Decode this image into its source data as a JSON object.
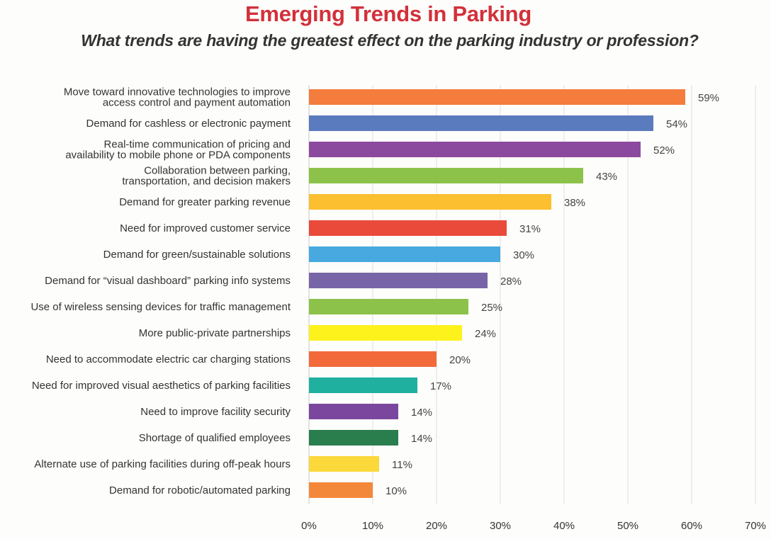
{
  "title": "Emerging Trends in Parking",
  "subtitle": "What trends are having the greatest effect on the parking industry or profession?",
  "chart_data": {
    "type": "bar",
    "orientation": "horizontal",
    "categories": [
      [
        "Move toward innovative technologies to improve",
        "access control and payment automation"
      ],
      [
        "Demand for cashless or electronic payment"
      ],
      [
        "Real-time communication of pricing and",
        "availability to mobile phone or PDA components"
      ],
      [
        "Collaboration between parking,",
        "transportation, and decision makers"
      ],
      [
        "Demand for greater parking revenue"
      ],
      [
        "Need for improved customer service"
      ],
      [
        "Demand for green/sustainable solutions"
      ],
      [
        "Demand for “visual dashboard” parking info systems"
      ],
      [
        "Use of wireless sensing devices for traffic management"
      ],
      [
        "More public-private partnerships"
      ],
      [
        "Need to accommodate electric car charging stations"
      ],
      [
        "Need for improved visual aesthetics of parking facilities"
      ],
      [
        "Need to improve facility security"
      ],
      [
        "Shortage of qualified employees"
      ],
      [
        "Alternate use of parking facilities during off-peak hours"
      ],
      [
        "Demand for robotic/automated parking"
      ]
    ],
    "values": [
      59,
      54,
      52,
      43,
      38,
      31,
      30,
      28,
      25,
      24,
      20,
      17,
      14,
      14,
      11,
      10
    ],
    "value_labels": [
      "59%",
      "54%",
      "52%",
      "43%",
      "38%",
      "31%",
      "30%",
      "28%",
      "25%",
      "24%",
      "20%",
      "17%",
      "14%",
      "14%",
      "11%",
      "10%"
    ],
    "colors": [
      "#f47c3c",
      "#5b7bbf",
      "#8c4a9e",
      "#8cc24a",
      "#fbbf2f",
      "#ea4a3a",
      "#47a9df",
      "#7865a8",
      "#8cc24a",
      "#fef21c",
      "#f26a3a",
      "#1fb0a0",
      "#7b479e",
      "#2a7d4d",
      "#fcd93a",
      "#f4883a"
    ],
    "x_ticks": [
      0,
      10,
      20,
      30,
      40,
      50,
      60,
      70
    ],
    "x_tick_labels": [
      "0%",
      "10%",
      "20%",
      "30%",
      "40%",
      "50%",
      "60%",
      "70%"
    ],
    "xlim": [
      0,
      70
    ],
    "grid": true,
    "xlabel": "",
    "ylabel": ""
  }
}
